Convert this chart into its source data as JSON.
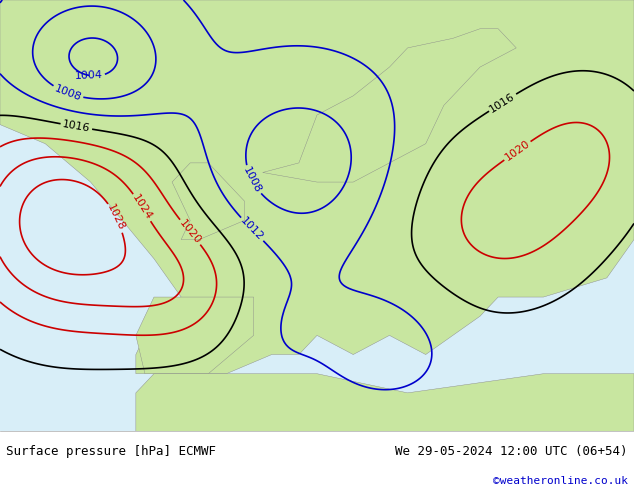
{
  "title_left": "Surface pressure [hPa] ECMWF",
  "title_right": "We 29-05-2024 12:00 UTC (06+54)",
  "credit": "©weatheronline.co.uk",
  "bg_map_color": "#c8e6a0",
  "bg_sea_color": "#d8eef8",
  "land_color": "#c8e6a0",
  "border_color": "#888888",
  "footer_bg": "#e8e8e8",
  "footer_text_color": "#000000",
  "credit_color": "#0000cc",
  "isobar_blue_color": "#0000cc",
  "isobar_red_color": "#cc0000",
  "isobar_black_color": "#000000",
  "label_fontsize": 8,
  "footer_fontsize": 9,
  "figsize": [
    6.34,
    4.9
  ],
  "dpi": 100
}
